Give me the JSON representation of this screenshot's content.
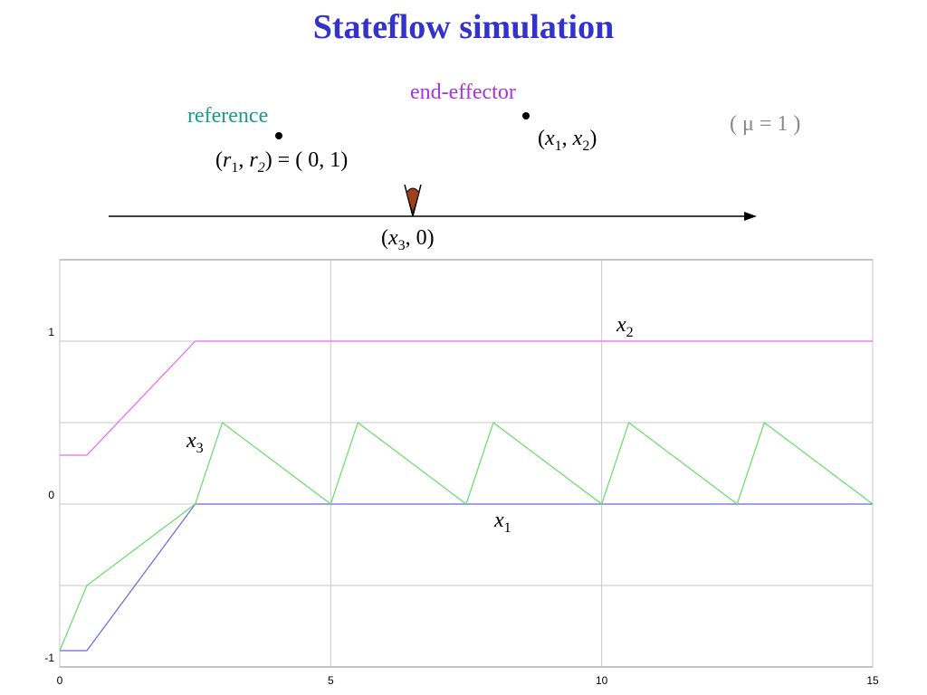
{
  "title": "Stateflow simulation",
  "colors": {
    "title": "#3333cc",
    "reference": "#1a9a8a",
    "end_effector": "#aa33dd",
    "mu": "#888888",
    "x1": "#6666ee",
    "x2": "#ee66ee",
    "x3": "#66dd66",
    "grid": "#c8c8c8",
    "axis_line": "#000000",
    "cone": "#a0401a"
  },
  "diagram": {
    "reference_label": "reference",
    "end_effector_label": "end-effector",
    "mu_label": "( μ = 1 )",
    "reference_coord": {
      "open": "(",
      "r": "r",
      "sub1": "1",
      "comma": ", ",
      "sub2": "2",
      "rest": ") = ( 0, 1)"
    },
    "end_effector_coord": {
      "open": "(",
      "x": "x",
      "sub1": "1",
      "comma": ", ",
      "sub2": "2",
      "close": ")"
    },
    "cone_coord": {
      "open": "(",
      "x": "x",
      "sub": "3",
      "rest": ", 0)"
    }
  },
  "chart_data": {
    "type": "line",
    "xlim": [
      0,
      15
    ],
    "ylim": [
      -1,
      1.5
    ],
    "xticks": [
      "0",
      "5",
      "10",
      "15"
    ],
    "yticks": [
      "-1",
      "0",
      "1"
    ],
    "grid": true,
    "series": [
      {
        "name": "x1",
        "label": "x",
        "sub": "1",
        "points": [
          [
            0,
            -0.9
          ],
          [
            0.5,
            -0.9
          ],
          [
            2.5,
            0
          ],
          [
            15,
            0
          ]
        ]
      },
      {
        "name": "x2",
        "label": "x",
        "sub": "2",
        "points": [
          [
            0,
            0.3
          ],
          [
            0.5,
            0.3
          ],
          [
            2.5,
            1
          ],
          [
            15,
            1
          ]
        ]
      },
      {
        "name": "x3",
        "label": "x",
        "sub": "3",
        "points": [
          [
            0,
            -0.9
          ],
          [
            0.5,
            -0.5
          ],
          [
            2.5,
            0
          ],
          [
            3,
            0.5
          ],
          [
            5,
            0
          ],
          [
            5.5,
            0.5
          ],
          [
            7.5,
            0
          ],
          [
            8,
            0.5
          ],
          [
            10,
            0
          ],
          [
            10.5,
            0.5
          ],
          [
            12.5,
            0
          ],
          [
            13,
            0.5
          ],
          [
            15,
            0
          ]
        ]
      }
    ]
  }
}
